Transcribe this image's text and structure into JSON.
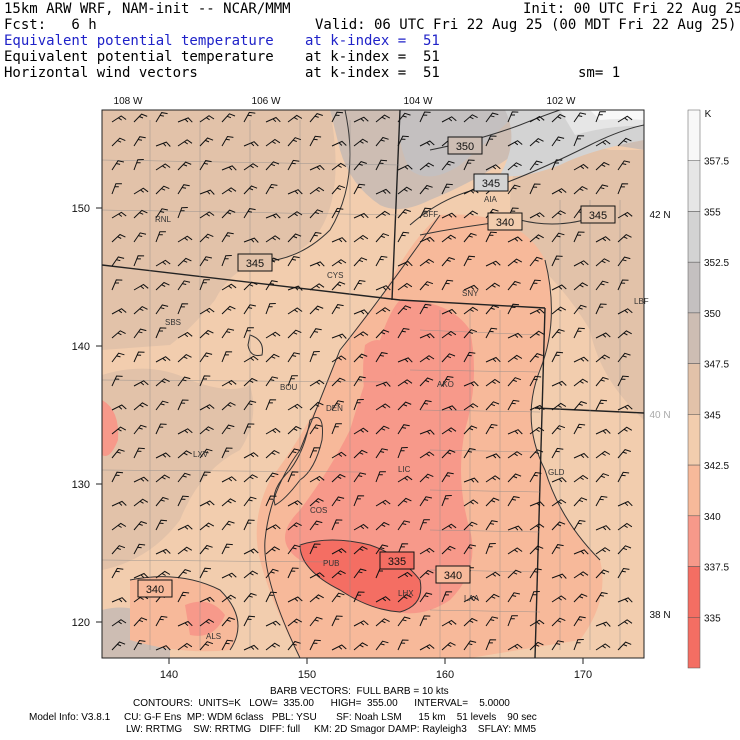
{
  "header": {
    "model": "15km ARW WRF, NAM-init -- NCAR/MMM",
    "init": "Init: 00 UTC Fri 22 Aug 25",
    "fcst": "Fcst:   6 h",
    "valid": "Valid: 06 UTC Fri 22 Aug 25 (00 MDT Fri 22 Aug 25)",
    "fields": [
      {
        "name": "Equivalent potential temperature",
        "level": "at k-index =  51",
        "color": "#1f22c8"
      },
      {
        "name": "Equivalent potential temperature",
        "level": "at k-index =  51",
        "color": "#000000"
      },
      {
        "name": "Horizontal wind vectors",
        "level": "at k-index =  51",
        "color": "#000000"
      }
    ],
    "smooth": "sm= 1"
  },
  "top_axis_labels": [
    "108 W",
    "106 W",
    "104 W",
    "102 W"
  ],
  "left_axis_labels": [
    "150",
    "140",
    "130",
    "120"
  ],
  "bottom_axis_labels": [
    "140",
    "150",
    "160",
    "170"
  ],
  "right_lat_labels": [
    "42 N",
    "40 N",
    "38 N"
  ],
  "stations": [
    "RNL",
    "BFF",
    "AIA",
    "CYS",
    "SNY",
    "LBF",
    "SBS",
    "BOU",
    "DEN",
    "AKO",
    "LXV",
    "LIC",
    "GLD",
    "COS",
    "PUB",
    "LHX",
    "LAA",
    "ALS"
  ],
  "contour_labels": [
    "350",
    "345",
    "340",
    "345",
    "345",
    "335",
    "340",
    "340"
  ],
  "colorbar": {
    "unit": "K",
    "levels": [
      "357.5",
      "355",
      "352.5",
      "350",
      "347.5",
      "345",
      "342.5",
      "340",
      "337.5",
      "335"
    ],
    "colors": [
      "#f8f8f8",
      "#e6e6e6",
      "#d3d3d3",
      "#c4c0c0",
      "#cdbdb3",
      "#e2c2a9",
      "#f2cdae",
      "#f7b99a",
      "#f7998a",
      "#f46e63"
    ]
  },
  "footer": {
    "barb": "BARB VECTORS:  FULL BARB = 10 kts",
    "contours": "CONTOURS:  UNITS=K   LOW=  335.00      HIGH=  355.00      INTERVAL=    5.0000",
    "model_info": "Model Info: V3.8.1     CU: G-F Ens  MP: WDM 6class   PBL: YSU       SF: Noah LSM      15 km    51 levels    90 sec",
    "physics": "LW: RRTMG    SW: RRTMG   DIFF: full     KM: 2D Smagor DAMP: Rayleigh3    SFLAY: MM5"
  }
}
